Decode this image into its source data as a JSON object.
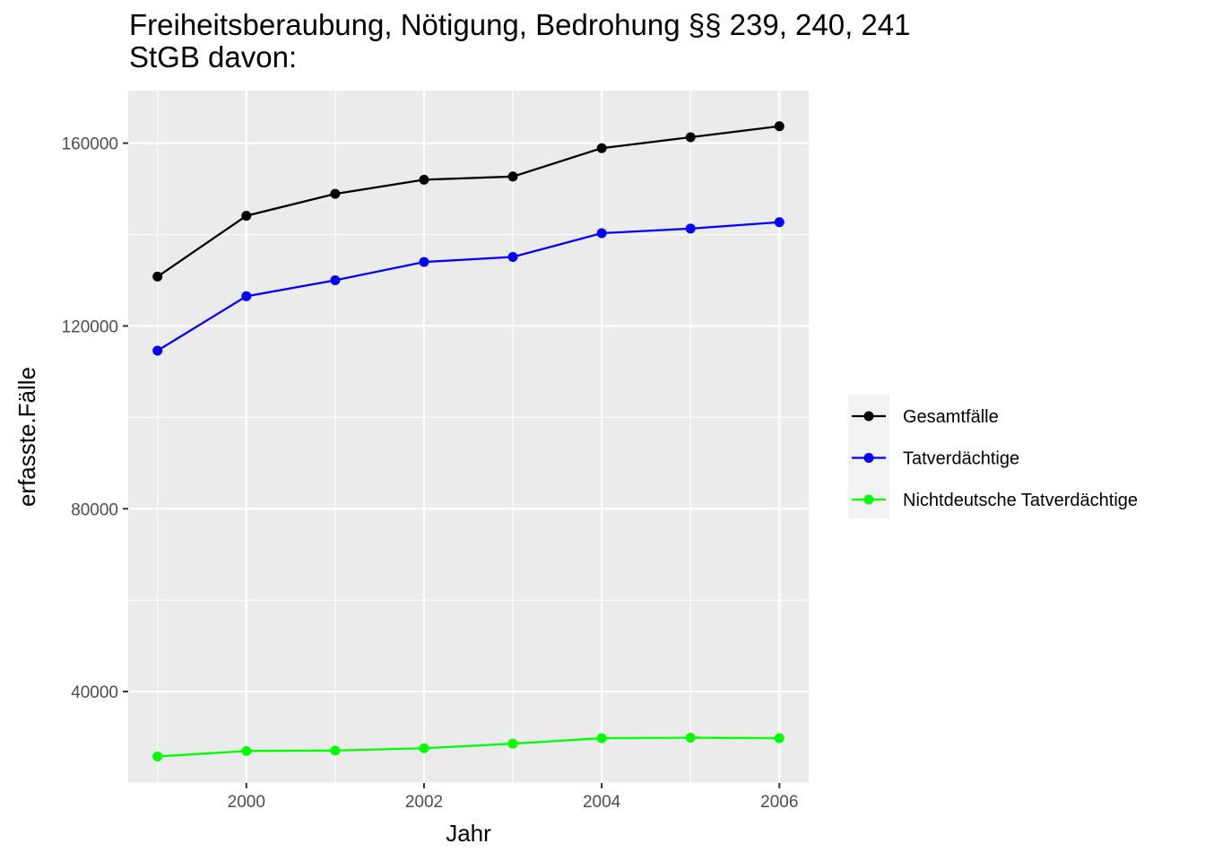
{
  "chart_data": {
    "type": "line",
    "title_lines": [
      "Freiheitsberaubung, Nötigung, Bedrohung §§ 239, 240, 241",
      "StGB davon:"
    ],
    "xlabel": "Jahr",
    "ylabel": "erfasste.Fälle",
    "x": [
      1999,
      2000,
      2001,
      2002,
      2003,
      2004,
      2005,
      2006
    ],
    "xlim": [
      1998.67,
      2006.33
    ],
    "ylim": [
      20000,
      171500
    ],
    "x_ticks": [
      2000,
      2002,
      2004,
      2006
    ],
    "y_ticks": [
      40000,
      80000,
      120000,
      160000
    ],
    "y_minor": [
      20000,
      60000,
      100000,
      140000
    ],
    "x_minor": [
      1999,
      2001,
      2003,
      2005
    ],
    "grid": true,
    "legend_position": "right",
    "series": [
      {
        "name": "Gesamtfälle",
        "color": "#000000",
        "values": [
          130800,
          144100,
          148900,
          152000,
          152700,
          158900,
          161300,
          163700
        ]
      },
      {
        "name": "Tatverdächtige",
        "color": "#0000ff",
        "values": [
          114600,
          126500,
          130000,
          134000,
          135100,
          140300,
          141300,
          142700
        ]
      },
      {
        "name": "Nichtdeutsche Tatverdächtige",
        "color": "#00ff00",
        "values": [
          25800,
          27000,
          27100,
          27600,
          28600,
          29800,
          29900,
          29800
        ]
      }
    ]
  }
}
